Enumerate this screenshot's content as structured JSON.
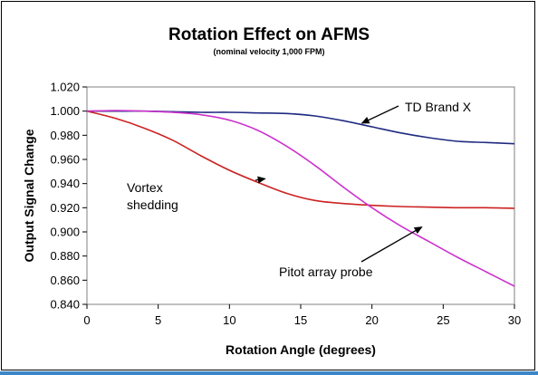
{
  "chart_data": {
    "type": "line",
    "title": "Rotation Effect on AFMS",
    "subtitle": "(nominal velocity 1,000 FPM)",
    "xlabel": "Rotation Angle (degrees)",
    "ylabel": "Output Signal Change",
    "xlim": [
      0,
      30
    ],
    "ylim": [
      0.84,
      1.02
    ],
    "x_ticks": [
      0,
      5,
      10,
      15,
      20,
      25,
      30
    ],
    "x_tick_labels": [
      "0",
      "5",
      "10",
      "15",
      "20",
      "25",
      "30"
    ],
    "y_ticks": [
      0.84,
      0.86,
      0.88,
      0.9,
      0.92,
      0.94,
      0.96,
      0.98,
      1.0,
      1.02
    ],
    "y_tick_labels": [
      "0.840",
      "0.860",
      "0.880",
      "0.900",
      "0.920",
      "0.940",
      "0.960",
      "0.980",
      "1.000",
      "1.020"
    ],
    "grid": false,
    "legend": "none",
    "series": [
      {
        "name": "TD Brand X",
        "color": "#1f2a80",
        "x": [
          0,
          2,
          4,
          6,
          8,
          10,
          12,
          14,
          16,
          18,
          20,
          22,
          24,
          26,
          28,
          30
        ],
        "y": [
          1.0,
          1.0,
          1.0,
          0.9995,
          0.999,
          0.999,
          0.9985,
          0.998,
          0.996,
          0.992,
          0.987,
          0.982,
          0.978,
          0.975,
          0.974,
          0.973
        ]
      },
      {
        "name": "Vortex shedding",
        "color": "#cc2222",
        "x": [
          0,
          2,
          4,
          6,
          8,
          10,
          12,
          14,
          16,
          18,
          20,
          22,
          24,
          26,
          28,
          30
        ],
        "y": [
          1.0,
          0.994,
          0.986,
          0.976,
          0.963,
          0.951,
          0.941,
          0.932,
          0.926,
          0.9235,
          0.922,
          0.921,
          0.9205,
          0.92,
          0.92,
          0.9195
        ]
      },
      {
        "name": "Pitot array probe",
        "color": "#cc33cc",
        "x": [
          0,
          2,
          4,
          6,
          8,
          10,
          12,
          14,
          16,
          18,
          20,
          22,
          24,
          26,
          28,
          30
        ],
        "y": [
          1.0,
          1.0005,
          1.0,
          0.999,
          0.997,
          0.9925,
          0.984,
          0.971,
          0.955,
          0.937,
          0.92,
          0.905,
          0.892,
          0.879,
          0.867,
          0.855
        ]
      }
    ],
    "annotations": [
      {
        "text": "TD Brand X",
        "series": "TD Brand X",
        "arrow_to": [
          19.3,
          0.99
        ]
      },
      {
        "text": "Vortex",
        "series": "Vortex shedding"
      },
      {
        "text": "shedding",
        "series": "Vortex shedding",
        "arrow_to": [
          12.5,
          0.944
        ]
      },
      {
        "text": "Pitot array probe",
        "series": "Pitot array probe",
        "arrow_to": [
          23.5,
          0.904
        ]
      }
    ]
  }
}
